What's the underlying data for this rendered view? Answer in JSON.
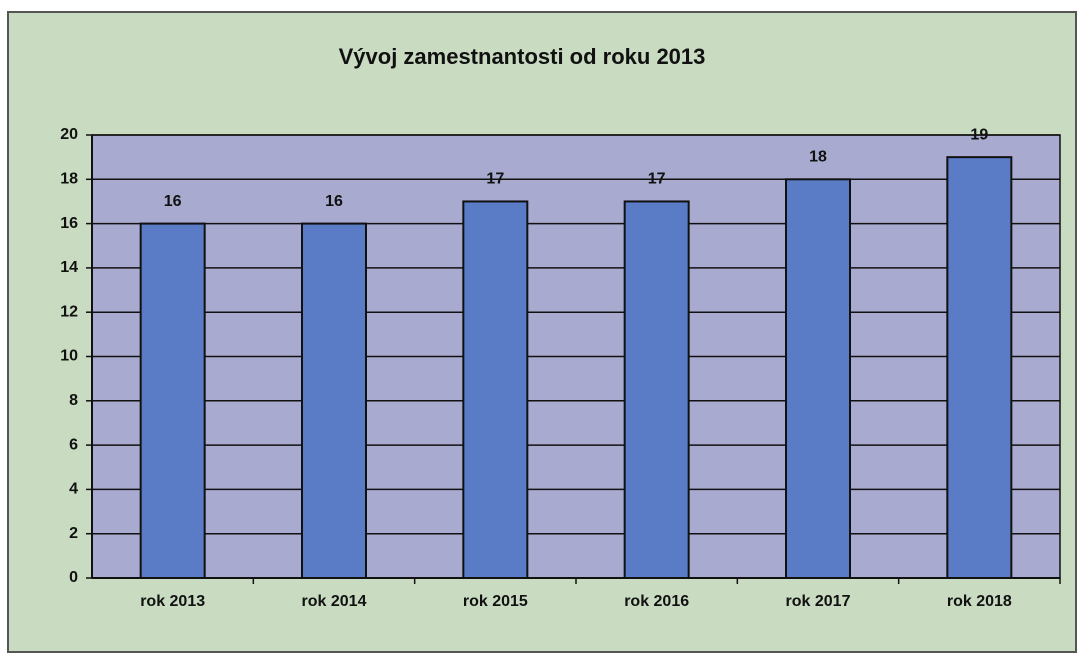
{
  "chart_data": {
    "type": "bar",
    "title": "Vývoj zamestnantosti od roku 2013",
    "categories": [
      "rok 2013",
      "rok 2014",
      "rok 2015",
      "rok 2016",
      "rok 2017",
      "rok 2018"
    ],
    "values": [
      16,
      16,
      17,
      17,
      18,
      19
    ],
    "color": "#5a7bc6",
    "ylim": [
      0,
      20
    ],
    "yticks": [
      0,
      2,
      4,
      6,
      8,
      10,
      12,
      14,
      16,
      18,
      20
    ],
    "grid": true
  }
}
